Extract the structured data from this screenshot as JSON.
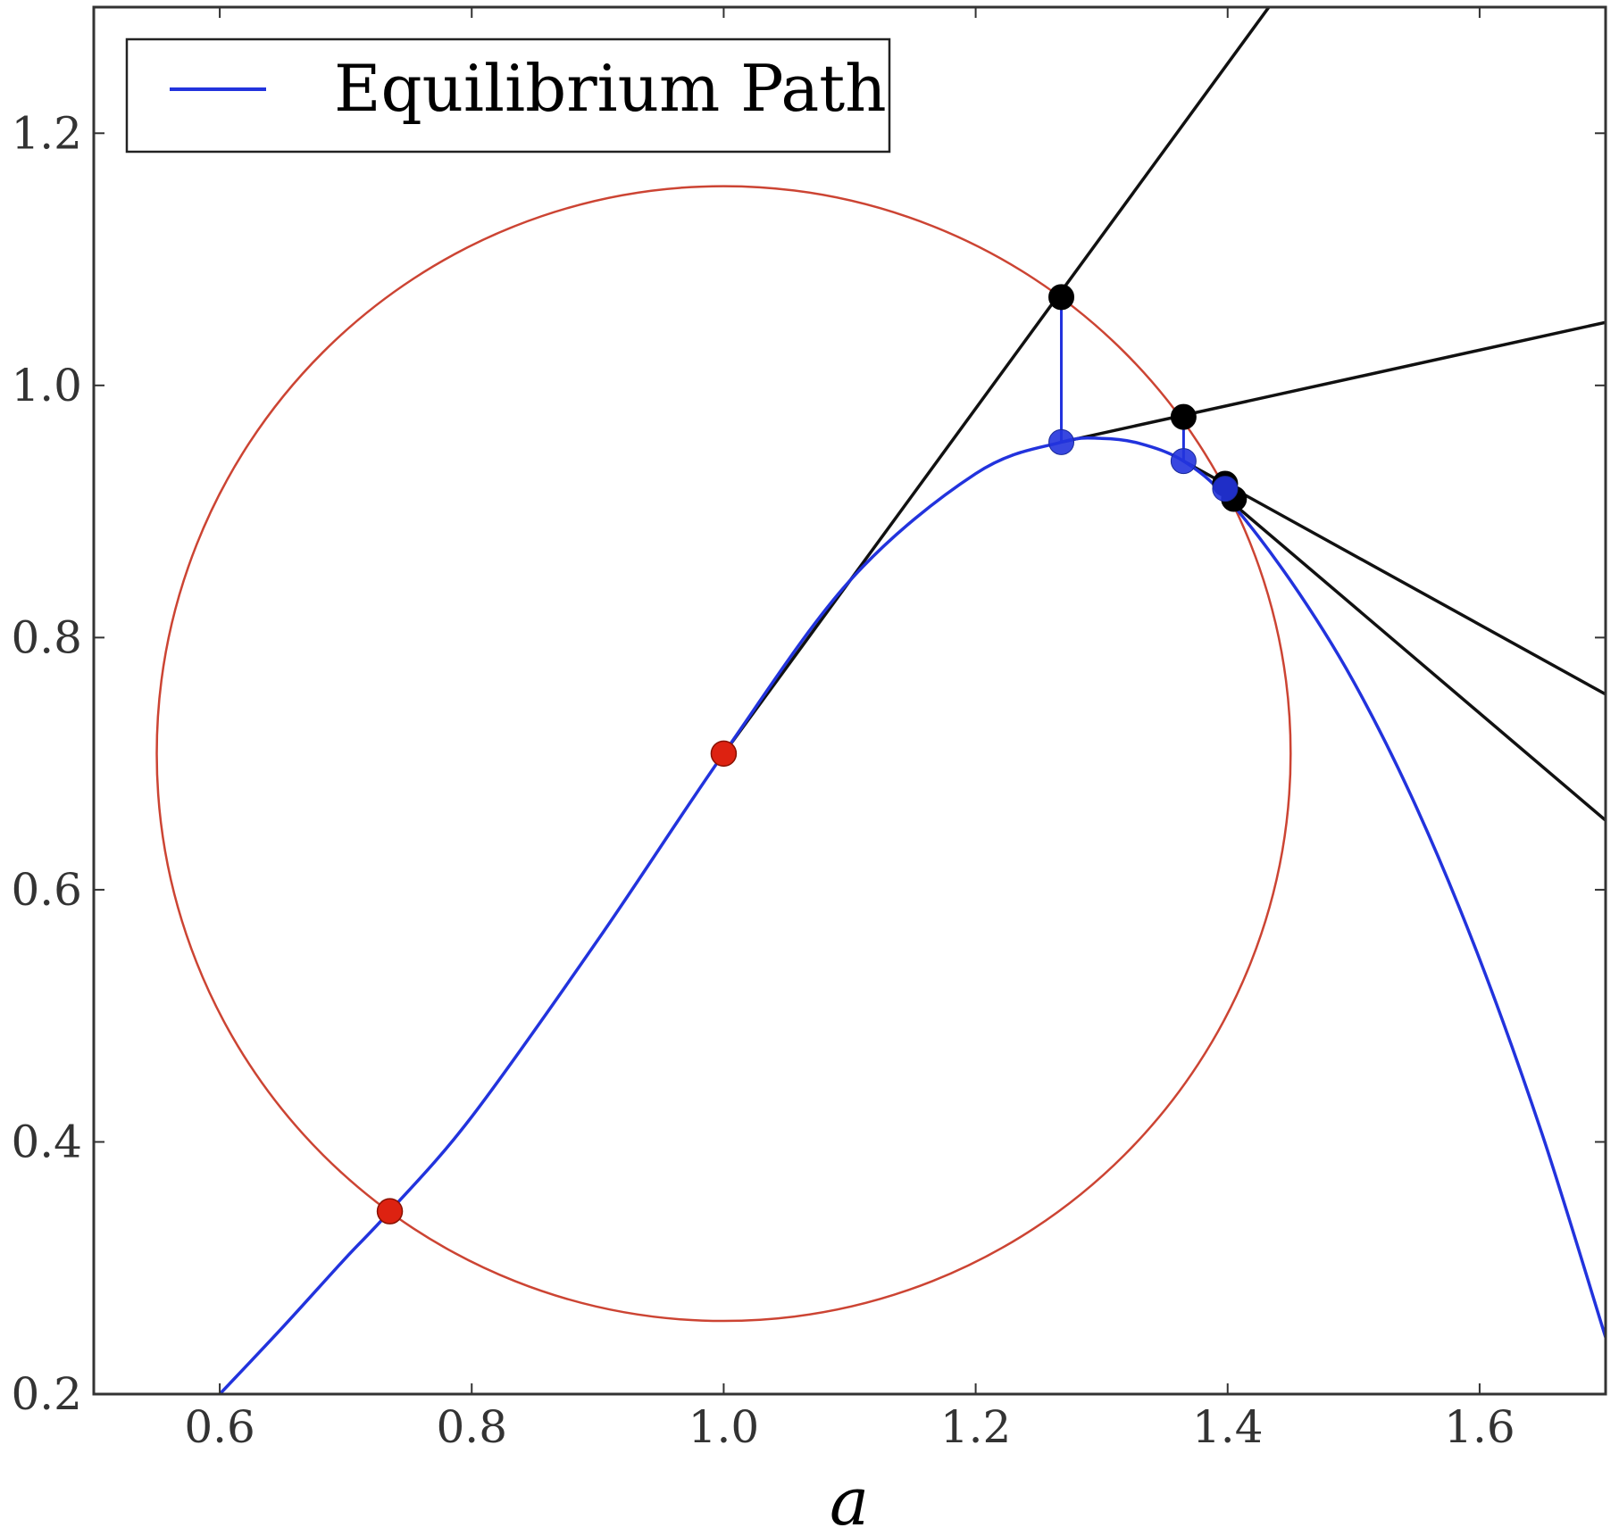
{
  "chart_data": {
    "type": "line",
    "title": "",
    "xlabel": "a",
    "ylabel": "",
    "xlim": [
      0.5,
      1.7
    ],
    "ylim": [
      0.2,
      1.3
    ],
    "xticks": [
      "0.6",
      "0.8",
      "1.0",
      "1.2",
      "1.4",
      "1.6"
    ],
    "yticks": [
      "0.2",
      "0.4",
      "0.6",
      "0.8",
      "1.0",
      "1.2"
    ],
    "xtick_values": [
      0.6,
      0.8,
      1.0,
      1.2,
      1.4,
      1.6
    ],
    "ytick_values": [
      0.2,
      0.4,
      0.6,
      0.8,
      1.0,
      1.2
    ],
    "grid": false,
    "legend": {
      "placement": "top-left",
      "entries": [
        {
          "label": "Equilibrium Path",
          "color": "#2233dd"
        }
      ]
    },
    "colors": {
      "path": "#2233dd",
      "circle": "#cc4433",
      "tangent": "#111111",
      "red_point": "#dd2211"
    },
    "equilibrium_path": {
      "x": [
        0.6,
        0.65,
        0.7,
        0.735,
        0.8,
        0.9,
        1.0,
        1.1,
        1.2,
        1.268,
        1.3,
        1.33,
        1.365,
        1.4,
        1.45,
        1.5,
        1.55,
        1.6,
        1.65,
        1.7
      ],
      "y": [
        0.2,
        0.253,
        0.308,
        0.345,
        0.42,
        0.56,
        0.708,
        0.845,
        0.93,
        0.955,
        0.958,
        0.954,
        0.94,
        0.91,
        0.845,
        0.765,
        0.665,
        0.545,
        0.405,
        0.245
      ]
    },
    "circle": {
      "center": [
        1.0,
        0.708
      ],
      "radius_x": 0.45,
      "radius_y": 0.45
    },
    "tangent_lines": [
      {
        "x": [
          1.0,
          1.44
        ],
        "y": [
          0.708,
          1.31
        ]
      },
      {
        "x": [
          1.268,
          1.7
        ],
        "y": [
          0.955,
          1.05
        ]
      },
      {
        "x": [
          1.365,
          1.7
        ],
        "y": [
          0.94,
          0.755
        ]
      },
      {
        "x": [
          1.4,
          1.7
        ],
        "y": [
          0.91,
          0.655
        ]
      }
    ],
    "connectors": [
      {
        "x": [
          1.268,
          1.268
        ],
        "y": [
          0.955,
          1.07
        ]
      },
      {
        "x": [
          1.365,
          1.365
        ],
        "y": [
          0.94,
          0.975
        ]
      }
    ],
    "red_points": {
      "x": [
        1.0,
        0.735
      ],
      "y": [
        0.708,
        0.345
      ]
    },
    "black_points": {
      "x": [
        1.268,
        1.365,
        1.398,
        1.405
      ],
      "y": [
        1.07,
        0.975,
        0.922,
        0.91
      ]
    },
    "blue_points": {
      "x": [
        1.268,
        1.365,
        1.398
      ],
      "y": [
        0.955,
        0.94,
        0.918
      ]
    }
  }
}
